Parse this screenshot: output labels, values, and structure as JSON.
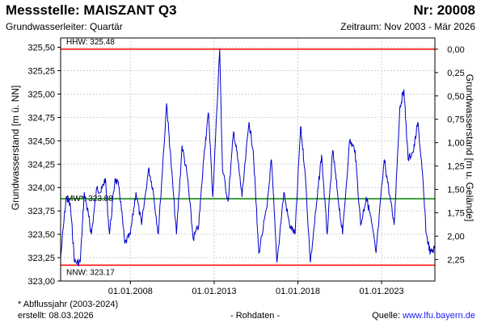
{
  "header": {
    "title": "Messstelle: MAISZANT Q3",
    "number": "Nr: 20008",
    "aquifer": "Grundwasserleiter: Quartär",
    "period": "Zeitraum: Nov 2003 - Mär 2026"
  },
  "footer": {
    "note": "* Abflussjahr (2003-2024)",
    "created": "erstellt:  08.03.2026",
    "mid": "- Rohdaten -",
    "source_prefix": "Quelle: ",
    "source_link": "www.lfu.bayern.de"
  },
  "chart_data": {
    "type": "line",
    "ylabel": "Grundwasserstand [m ü. NN]",
    "ylabel_right": "Grundwasserstand [m u. Gelände]",
    "x_range": [
      "2003-11-01",
      "2026-03-08"
    ],
    "ylim": [
      323.0,
      325.6
    ],
    "y_ticks": [
      "325,50",
      "325,25",
      "325,00",
      "324,75",
      "324,50",
      "324,25",
      "324,00",
      "323,75",
      "323,50",
      "323,25",
      "323,00"
    ],
    "y_tick_values": [
      325.5,
      325.25,
      325.0,
      324.75,
      324.5,
      324.25,
      324.0,
      323.75,
      323.5,
      323.25,
      323.0
    ],
    "y2_ticks": [
      "0,00",
      "0,25",
      "0,50",
      "0,75",
      "1,00",
      "1,25",
      "1,50",
      "1,75",
      "2,00",
      "2,25"
    ],
    "y2_tick_values": [
      0.0,
      0.25,
      0.5,
      0.75,
      1.0,
      1.25,
      1.5,
      1.75,
      2.0,
      2.25
    ],
    "y2_zero_at": 325.48,
    "x_ticks": [
      "01.01.2008",
      "01.01.2013",
      "01.01.2018",
      "01.01.2023"
    ],
    "x_tick_dates": [
      "2008-01-01",
      "2013-01-01",
      "2018-01-01",
      "2023-01-01"
    ],
    "grid": true,
    "reference_lines": [
      {
        "label": "HHW: 325.48",
        "value": 325.48,
        "color": "#ff0000"
      },
      {
        "label": "MW*: 323.88",
        "value": 323.88,
        "color": "#008000"
      },
      {
        "label": "NNW: 323.17",
        "value": 323.17,
        "color": "#ff0000"
      }
    ],
    "series": [
      {
        "color": "#0000cc",
        "points": [
          [
            "2003-11-01",
            323.25
          ],
          [
            "2004-03-01",
            323.9
          ],
          [
            "2004-06-01",
            323.8
          ],
          [
            "2004-09-01",
            323.2
          ],
          [
            "2005-01-01",
            323.2
          ],
          [
            "2005-04-01",
            323.95
          ],
          [
            "2005-07-01",
            323.7
          ],
          [
            "2005-09-01",
            323.5
          ],
          [
            "2006-01-01",
            324.0
          ],
          [
            "2006-04-01",
            323.95
          ],
          [
            "2006-07-01",
            324.1
          ],
          [
            "2006-10-01",
            323.5
          ],
          [
            "2007-02-01",
            324.1
          ],
          [
            "2007-05-01",
            324.0
          ],
          [
            "2007-09-01",
            323.4
          ],
          [
            "2008-01-01",
            323.5
          ],
          [
            "2008-05-01",
            323.95
          ],
          [
            "2008-09-01",
            323.6
          ],
          [
            "2009-02-01",
            324.2
          ],
          [
            "2009-05-01",
            324.0
          ],
          [
            "2009-09-01",
            323.5
          ],
          [
            "2010-03-01",
            324.9
          ],
          [
            "2010-06-01",
            324.3
          ],
          [
            "2010-10-01",
            323.5
          ],
          [
            "2011-02-01",
            324.45
          ],
          [
            "2011-06-01",
            324.1
          ],
          [
            "2011-10-01",
            323.45
          ],
          [
            "2012-02-01",
            323.6
          ],
          [
            "2012-06-01",
            324.4
          ],
          [
            "2012-09-01",
            324.8
          ],
          [
            "2012-12-01",
            323.9
          ],
          [
            "2013-05-01",
            325.48
          ],
          [
            "2013-07-01",
            324.2
          ],
          [
            "2013-11-01",
            323.85
          ],
          [
            "2014-03-01",
            324.6
          ],
          [
            "2014-06-01",
            324.3
          ],
          [
            "2014-09-01",
            323.9
          ],
          [
            "2015-02-01",
            324.7
          ],
          [
            "2015-05-01",
            324.4
          ],
          [
            "2015-09-01",
            323.3
          ],
          [
            "2016-03-01",
            323.8
          ],
          [
            "2016-06-01",
            324.3
          ],
          [
            "2016-10-01",
            323.2
          ],
          [
            "2017-03-01",
            323.95
          ],
          [
            "2017-07-01",
            323.6
          ],
          [
            "2017-11-01",
            323.5
          ],
          [
            "2018-03-01",
            324.65
          ],
          [
            "2018-06-01",
            324.2
          ],
          [
            "2018-10-01",
            323.2
          ],
          [
            "2019-03-01",
            323.9
          ],
          [
            "2019-06-01",
            324.35
          ],
          [
            "2019-10-01",
            323.5
          ],
          [
            "2020-02-01",
            324.4
          ],
          [
            "2020-05-01",
            324.0
          ],
          [
            "2020-09-01",
            323.5
          ],
          [
            "2021-02-01",
            324.5
          ],
          [
            "2021-06-01",
            324.4
          ],
          [
            "2021-10-01",
            323.6
          ],
          [
            "2022-02-01",
            323.9
          ],
          [
            "2022-05-01",
            323.7
          ],
          [
            "2022-09-01",
            323.3
          ],
          [
            "2023-03-01",
            324.3
          ],
          [
            "2023-06-01",
            324.0
          ],
          [
            "2023-10-01",
            323.6
          ],
          [
            "2024-02-01",
            324.85
          ],
          [
            "2024-05-01",
            325.05
          ],
          [
            "2024-08-01",
            324.3
          ],
          [
            "2024-12-01",
            324.4
          ],
          [
            "2025-03-01",
            324.7
          ],
          [
            "2025-06-01",
            324.2
          ],
          [
            "2025-09-01",
            323.5
          ],
          [
            "2025-12-01",
            323.3
          ],
          [
            "2026-03-01",
            323.35
          ]
        ]
      }
    ]
  }
}
